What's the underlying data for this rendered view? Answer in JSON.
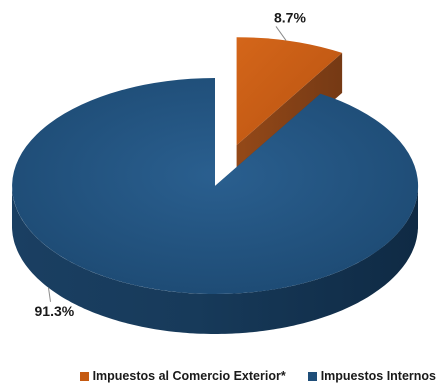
{
  "chart_data": {
    "type": "pie",
    "style": "3d-exploded",
    "legend_position": "bottom",
    "slices": [
      {
        "name": "Impuestos al Comercio Exterior*",
        "value": 8.7,
        "label": "8.7%",
        "color": "#c55a11",
        "exploded": true
      },
      {
        "name": "Impuestos Internos",
        "value": 91.3,
        "label": "91.3%",
        "color": "#1f4e79",
        "exploded": false
      }
    ]
  }
}
